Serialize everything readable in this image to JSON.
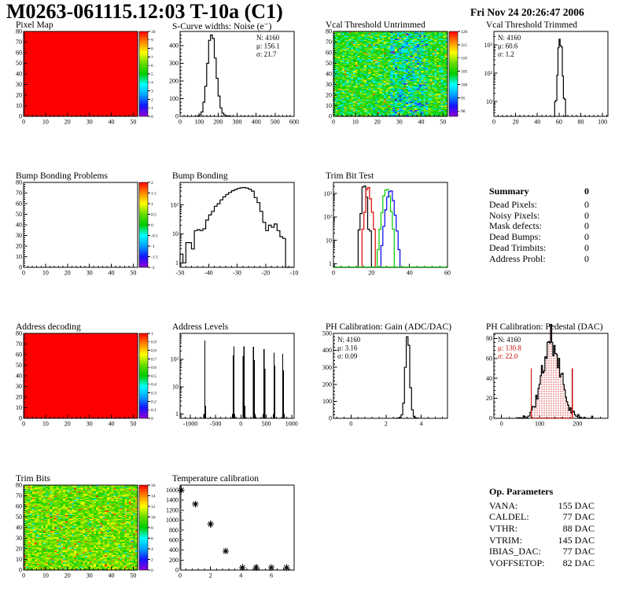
{
  "header": {
    "title": "M0263-061115.12:03 T-10a (C1)",
    "date": "Fri Nov 24 20:26:47 2006"
  },
  "palette": [
    "#9400d3",
    "#1414ff",
    "#00a0ff",
    "#00ffff",
    "#00cc00",
    "#66dd00",
    "#ffff00",
    "#ff8800",
    "#ff0000"
  ],
  "summary": {
    "title": "Summary",
    "total": "0",
    "rows": [
      [
        "Dead Pixels:",
        "0"
      ],
      [
        "Noisy Pixels:",
        "0"
      ],
      [
        "Mask defects:",
        "0"
      ],
      [
        "Dead Bumps:",
        "0"
      ],
      [
        "Dead Trimbits:",
        "0"
      ],
      [
        "Address Probl:",
        "0"
      ]
    ]
  },
  "op_parameters": {
    "title": "Op. Parameters",
    "rows": [
      [
        "VANA:",
        "155 DAC"
      ],
      [
        "CALDEL:",
        "77 DAC"
      ],
      [
        "VTHR:",
        "88 DAC"
      ],
      [
        "VTRIM:",
        "145 DAC"
      ],
      [
        "IBIAS_DAC:",
        "77 DAC"
      ],
      [
        "VOFFSETOP:",
        "82 DAC"
      ]
    ]
  },
  "chart_data": [
    {
      "id": "pixel_map",
      "type": "heatmap",
      "title": "Pixel Map",
      "x": {
        "min": 0,
        "max": 52,
        "ticks": [
          0,
          10,
          20,
          30,
          40,
          50
        ]
      },
      "y": {
        "min": 0,
        "max": 80,
        "ticks": [
          0,
          10,
          20,
          30,
          40,
          50,
          60,
          70,
          80
        ]
      },
      "z": {
        "min": 0,
        "max": 10,
        "ticks": [
          0,
          1,
          2,
          3,
          4,
          5,
          6,
          7,
          8,
          9,
          10
        ]
      },
      "fill": {
        "kind": "uniform",
        "value": 10
      }
    },
    {
      "id": "scurve_noise",
      "type": "histogram",
      "title": "S-Curve widths: Noise (e⁻)",
      "x": {
        "min": 0,
        "max": 600,
        "ticks": [
          0,
          100,
          200,
          300,
          400,
          500,
          600
        ]
      },
      "y": {
        "min": 0,
        "max": 480,
        "ticks": [
          0,
          100,
          200,
          300,
          400
        ]
      },
      "stats": {
        "pos": "tr",
        "lines": [
          {
            "text": "N: 4160"
          },
          {
            "text": "μ: 156.1"
          },
          {
            "text": "σ: 21.7"
          }
        ]
      },
      "bins": {
        "start": 90,
        "width": 10,
        "counts": [
          2,
          8,
          25,
          80,
          170,
          300,
          430,
          460,
          440,
          330,
          215,
          115,
          48,
          18,
          8,
          3,
          2,
          1
        ]
      }
    },
    {
      "id": "vcal_untrimmed",
      "type": "heatmap",
      "title": "Vcal Threshold Untrimmed",
      "x": {
        "min": 0,
        "max": 52,
        "ticks": [
          0,
          10,
          20,
          30,
          40,
          50
        ]
      },
      "y": {
        "min": 0,
        "max": 80,
        "ticks": [
          0,
          10,
          20,
          30,
          40,
          50,
          60,
          70,
          80
        ]
      },
      "z": {
        "min": 88,
        "max": 120,
        "ticks": [
          120,
          115,
          110,
          105,
          100,
          95,
          90
        ]
      },
      "fill": {
        "kind": "noise",
        "seed": 3,
        "mean": 105,
        "sigma": 3.2,
        "band": {
          "x0": 26,
          "x1": 42,
          "prob": 0.5,
          "delta": -9
        },
        "warm": {
          "prob": 0.012,
          "value": 113,
          "spread": 6
        }
      }
    },
    {
      "id": "vcal_trimmed",
      "type": "histogram",
      "title": "Vcal Threshold Trimmed",
      "x": {
        "min": 0,
        "max": 105,
        "ticks": [
          0,
          20,
          40,
          60,
          80,
          100
        ]
      },
      "y": {
        "log": true,
        "min": 3,
        "max": 3000,
        "ticks": [
          10,
          100,
          1000
        ]
      },
      "stats": {
        "pos": "tl",
        "lines": [
          {
            "text": "N: 4160"
          },
          {
            "text": "μ: 60.6"
          },
          {
            "text": "σ:  1.2"
          }
        ]
      },
      "bins": {
        "start": 55,
        "width": 1,
        "counts": [
          1,
          10,
          11,
          85,
          800,
          1600,
          950,
          850,
          80,
          13,
          12,
          1
        ]
      }
    },
    {
      "id": "bump_problems",
      "type": "heatmap",
      "title": "Bump Bonding Problems",
      "x": {
        "min": 0,
        "max": 52,
        "ticks": [
          0,
          10,
          20,
          30,
          40,
          50
        ]
      },
      "y": {
        "min": 0,
        "max": 80,
        "ticks": [
          0,
          10,
          20,
          30,
          40,
          50,
          60,
          70,
          80
        ]
      },
      "z": {
        "min": -2,
        "max": 2,
        "ticks": [
          2,
          1.5,
          1,
          0.5,
          0,
          -0.5,
          -1,
          -1.5,
          -2
        ]
      },
      "fill": {
        "kind": "empty"
      }
    },
    {
      "id": "bump_bonding",
      "type": "histogram",
      "title": "Bump Bonding",
      "x": {
        "min": -50,
        "max": -10,
        "ticks": [
          -50,
          -40,
          -30,
          -20,
          -10
        ]
      },
      "y": {
        "log": true,
        "min": 0.7,
        "max": 600,
        "ticks": [
          1,
          10,
          100
        ]
      },
      "bins": {
        "start": -50,
        "width": 1,
        "counts": [
          2,
          1,
          5,
          5,
          3,
          13,
          14,
          13,
          15,
          30,
          45,
          60,
          90,
          110,
          150,
          190,
          230,
          270,
          310,
          340,
          370,
          390,
          400,
          385,
          350,
          300,
          180,
          120,
          60,
          25,
          13,
          20,
          17,
          22,
          13,
          8,
          7,
          0,
          0,
          0
        ]
      }
    },
    {
      "id": "trim_bit_test",
      "type": "multi_histogram",
      "title": "Trim Bit Test",
      "x": {
        "min": 0,
        "max": 60,
        "ticks": [
          0,
          20,
          40,
          60
        ]
      },
      "y": {
        "log": true,
        "min": 0.7,
        "max": 3000,
        "ticks": [
          1,
          10,
          100,
          1000
        ]
      },
      "baseline_color": "#00cc00",
      "series": [
        {
          "name": "trim-bits-0",
          "color": "#000000",
          "bins": {
            "start": 13,
            "width": 1,
            "counts": [
              28,
              140,
              1900,
              2100,
              700,
              30,
              25
            ]
          }
        },
        {
          "name": "trim-bits-1",
          "color": "#dd0000",
          "bins": {
            "start": 15,
            "width": 1,
            "counts": [
              30,
              160,
              1500,
              1800,
              600,
              160,
              30
            ]
          }
        },
        {
          "name": "trim-bits-2",
          "color": "#00cc00",
          "bins": {
            "start": 23,
            "width": 1,
            "counts": [
              4,
              30,
              150,
              800,
              1400,
              1500,
              800,
              170,
              30
            ]
          }
        },
        {
          "name": "trim-bits-3",
          "color": "#0000ee",
          "bins": {
            "start": 25,
            "width": 1,
            "counts": [
              6,
              40,
              200,
              700,
              1200,
              1300,
              500,
              120,
              25,
              4
            ]
          }
        }
      ]
    },
    {
      "id": "address_decoding",
      "type": "heatmap",
      "title": "Address decoding",
      "x": {
        "min": 0,
        "max": 52,
        "ticks": [
          0,
          10,
          20,
          30,
          40,
          50
        ]
      },
      "y": {
        "min": 0,
        "max": 80,
        "ticks": [
          0,
          10,
          20,
          30,
          40,
          50,
          60,
          70,
          80
        ]
      },
      "z": {
        "min": 0,
        "max": 1,
        "ticks": [
          1,
          0.9,
          0.8,
          0.7,
          0.6,
          0.5,
          0.4,
          0.3,
          0.2,
          0.1,
          0
        ]
      },
      "fill": {
        "kind": "uniform",
        "value": 1
      }
    },
    {
      "id": "address_levels",
      "type": "spikes",
      "title": "Address Levels",
      "x": {
        "min": -1200,
        "max": 1050,
        "ticks": [
          -1000,
          -500,
          0,
          500,
          1000
        ]
      },
      "y": {
        "log": true,
        "min": 0.7,
        "max": 900,
        "ticks": [
          1,
          10,
          100
        ]
      },
      "spikes": [
        [
          -730,
          1
        ],
        [
          -712,
          500
        ],
        [
          -698,
          2
        ],
        [
          -168,
          1
        ],
        [
          -152,
          140
        ],
        [
          -138,
          300
        ],
        [
          -124,
          1
        ],
        [
          45,
          130
        ],
        [
          60,
          300
        ],
        [
          76,
          2
        ],
        [
          246,
          290
        ],
        [
          262,
          95
        ],
        [
          277,
          1
        ],
        [
          440,
          1
        ],
        [
          456,
          240
        ],
        [
          471,
          45
        ],
        [
          640,
          1
        ],
        [
          655,
          180
        ],
        [
          670,
          60
        ],
        [
          826,
          160
        ],
        [
          841,
          40
        ],
        [
          856,
          1
        ]
      ]
    },
    {
      "id": "ph_gain",
      "type": "histogram",
      "title": "PH Calibration: Gain (ADC/DAC)",
      "x": {
        "min": -1,
        "max": 5.5,
        "ticks": [
          0,
          2,
          4
        ]
      },
      "y": {
        "min": 0,
        "max": 500,
        "ticks": [
          0,
          100,
          200,
          300,
          400,
          500
        ]
      },
      "stats": {
        "pos": "tl",
        "lines": [
          {
            "text": "N: 4160"
          },
          {
            "text": "μ: 3.16"
          },
          {
            "text": "σ: 0.09"
          }
        ]
      },
      "bins": {
        "start": 2.55,
        "width": 0.1,
        "counts": [
          1,
          2,
          6,
          20,
          90,
          300,
          480,
          430,
          180,
          50,
          12,
          3,
          1
        ]
      }
    },
    {
      "id": "ph_pedestal",
      "type": "histogram",
      "title": "PH Calibration: Pedestal (DAC)",
      "x": {
        "min": -20,
        "max": 280,
        "ticks": [
          0,
          100,
          200
        ]
      },
      "y": {
        "min": 0,
        "max": 85,
        "ticks": [
          0,
          20,
          40,
          60,
          80
        ]
      },
      "stats": {
        "pos": "tl",
        "lines": [
          {
            "text": "N: 4160",
            "color": "#000000"
          },
          {
            "text": "μ: 130.8",
            "color": "#cc0000"
          },
          {
            "text": "σ: 22.0",
            "color": "#cc0000"
          }
        ]
      },
      "bins": {
        "generate": {
          "seed": 11,
          "start": 42,
          "width": 3,
          "end": 240,
          "mean": 132,
          "sigma": 24,
          "peak": 78
        }
      },
      "fit": {
        "from": 78,
        "to": 186,
        "height": 50,
        "color": "#cc0000"
      }
    },
    {
      "id": "trim_bits",
      "type": "heatmap",
      "title": "Trim Bits",
      "x": {
        "min": 0,
        "max": 52,
        "ticks": [
          0,
          10,
          20,
          30,
          40,
          50
        ]
      },
      "y": {
        "min": 0,
        "max": 80,
        "ticks": [
          0,
          10,
          20,
          30,
          40,
          50,
          60,
          70,
          80
        ]
      },
      "z": {
        "min": 0,
        "max": 16,
        "ticks": [
          16,
          14,
          12,
          10,
          8,
          6,
          4,
          2,
          0
        ]
      },
      "fill": {
        "kind": "noise",
        "seed": 9,
        "mean": 10,
        "sigma": 1.2,
        "warm": {
          "prob": 0.035,
          "value": 13.5,
          "spread": 2
        },
        "cool": {
          "prob": 0.02,
          "value": 6.5,
          "spread": 2
        }
      }
    },
    {
      "id": "temp_calibration",
      "type": "scatter",
      "title": "Temperature calibration",
      "x": {
        "min": 0,
        "max": 7.5,
        "ticks": [
          0,
          2,
          4,
          6
        ]
      },
      "y": {
        "min": 0,
        "max": 1700,
        "ticks": [
          0,
          200,
          400,
          600,
          800,
          1000,
          1200,
          1400,
          1600
        ]
      },
      "marker": "star",
      "points": [
        [
          0.08,
          1600
        ],
        [
          1,
          1320
        ],
        [
          2,
          920
        ],
        [
          3,
          380
        ],
        [
          4.1,
          50
        ],
        [
          5,
          50
        ],
        [
          6,
          50
        ],
        [
          7,
          50
        ]
      ]
    }
  ]
}
